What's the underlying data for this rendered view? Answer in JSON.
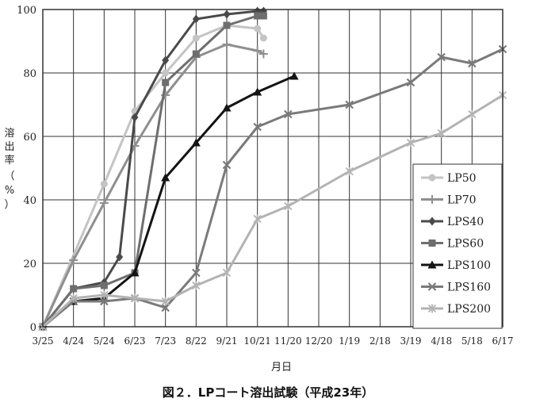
{
  "caption": "図２．LPコート溶出試験（平成23年）",
  "chart_data": {
    "type": "line",
    "title": "",
    "xlabel": "月日",
    "ylabel": "溶出率（%）",
    "ylim": [
      0,
      100
    ],
    "y_ticks": [
      "0",
      "20",
      "40",
      "60",
      "80",
      "100"
    ],
    "x_ticks": [
      "3/25",
      "4/24",
      "5/24",
      "6/23",
      "7/23",
      "8/22",
      "9/21",
      "10/21",
      "11/20",
      "12/20",
      "1/19",
      "2/18",
      "3/19",
      "4/18",
      "5/18",
      "6/17"
    ],
    "grid": true,
    "legend_position": "right",
    "series": [
      {
        "name": "LP50",
        "color": "#c4c4c4",
        "marker": "circle",
        "x": [
          0,
          2,
          3,
          4,
          5,
          6,
          7,
          7.2
        ],
        "y": [
          0,
          45,
          68,
          80,
          91,
          95,
          94,
          91
        ]
      },
      {
        "name": "LP70",
        "color": "#8f8f8f",
        "marker": "plus",
        "x": [
          0,
          1,
          2,
          3,
          4,
          5,
          6,
          7,
          7.2
        ],
        "y": [
          0,
          21,
          39,
          57,
          73,
          85,
          89,
          87,
          86
        ]
      },
      {
        "name": "LPS40",
        "color": "#4a4a4a",
        "marker": "diamond",
        "x": [
          0,
          1,
          2,
          2.5,
          3,
          4,
          5,
          6,
          7,
          7.2
        ],
        "y": [
          0,
          12,
          14,
          22,
          66,
          84,
          97,
          98.5,
          99.5,
          99.5
        ]
      },
      {
        "name": "LPS60",
        "color": "#6e6e6e",
        "marker": "square",
        "x": [
          0,
          1,
          2,
          3,
          4,
          5,
          6,
          7,
          7.2
        ],
        "y": [
          0,
          12,
          13,
          17,
          77,
          86,
          95,
          98,
          98
        ]
      },
      {
        "name": "LPS100",
        "color": "#141414",
        "marker": "triangle",
        "x": [
          0,
          1,
          2,
          3,
          4,
          5,
          6,
          7,
          8.2
        ],
        "y": [
          0,
          8,
          9,
          17,
          47,
          58,
          69,
          74,
          79
        ]
      },
      {
        "name": "LPS160",
        "color": "#7a7a7a",
        "marker": "x",
        "x": [
          0,
          1,
          2,
          3,
          4,
          5,
          6,
          7,
          8,
          10,
          12,
          13,
          14,
          15
        ],
        "y": [
          0,
          8,
          8,
          9,
          6,
          17,
          51,
          63,
          67,
          70,
          77,
          85,
          83,
          87.5
        ]
      },
      {
        "name": "LPS200",
        "color": "#b3b3b3",
        "marker": "asterisk",
        "x": [
          0,
          1,
          2,
          3,
          4,
          5,
          6,
          7,
          8,
          10,
          12,
          13,
          14,
          15
        ],
        "y": [
          0,
          9,
          10,
          9,
          8,
          13,
          17,
          34,
          38,
          49,
          58,
          61,
          67,
          73
        ]
      }
    ]
  }
}
